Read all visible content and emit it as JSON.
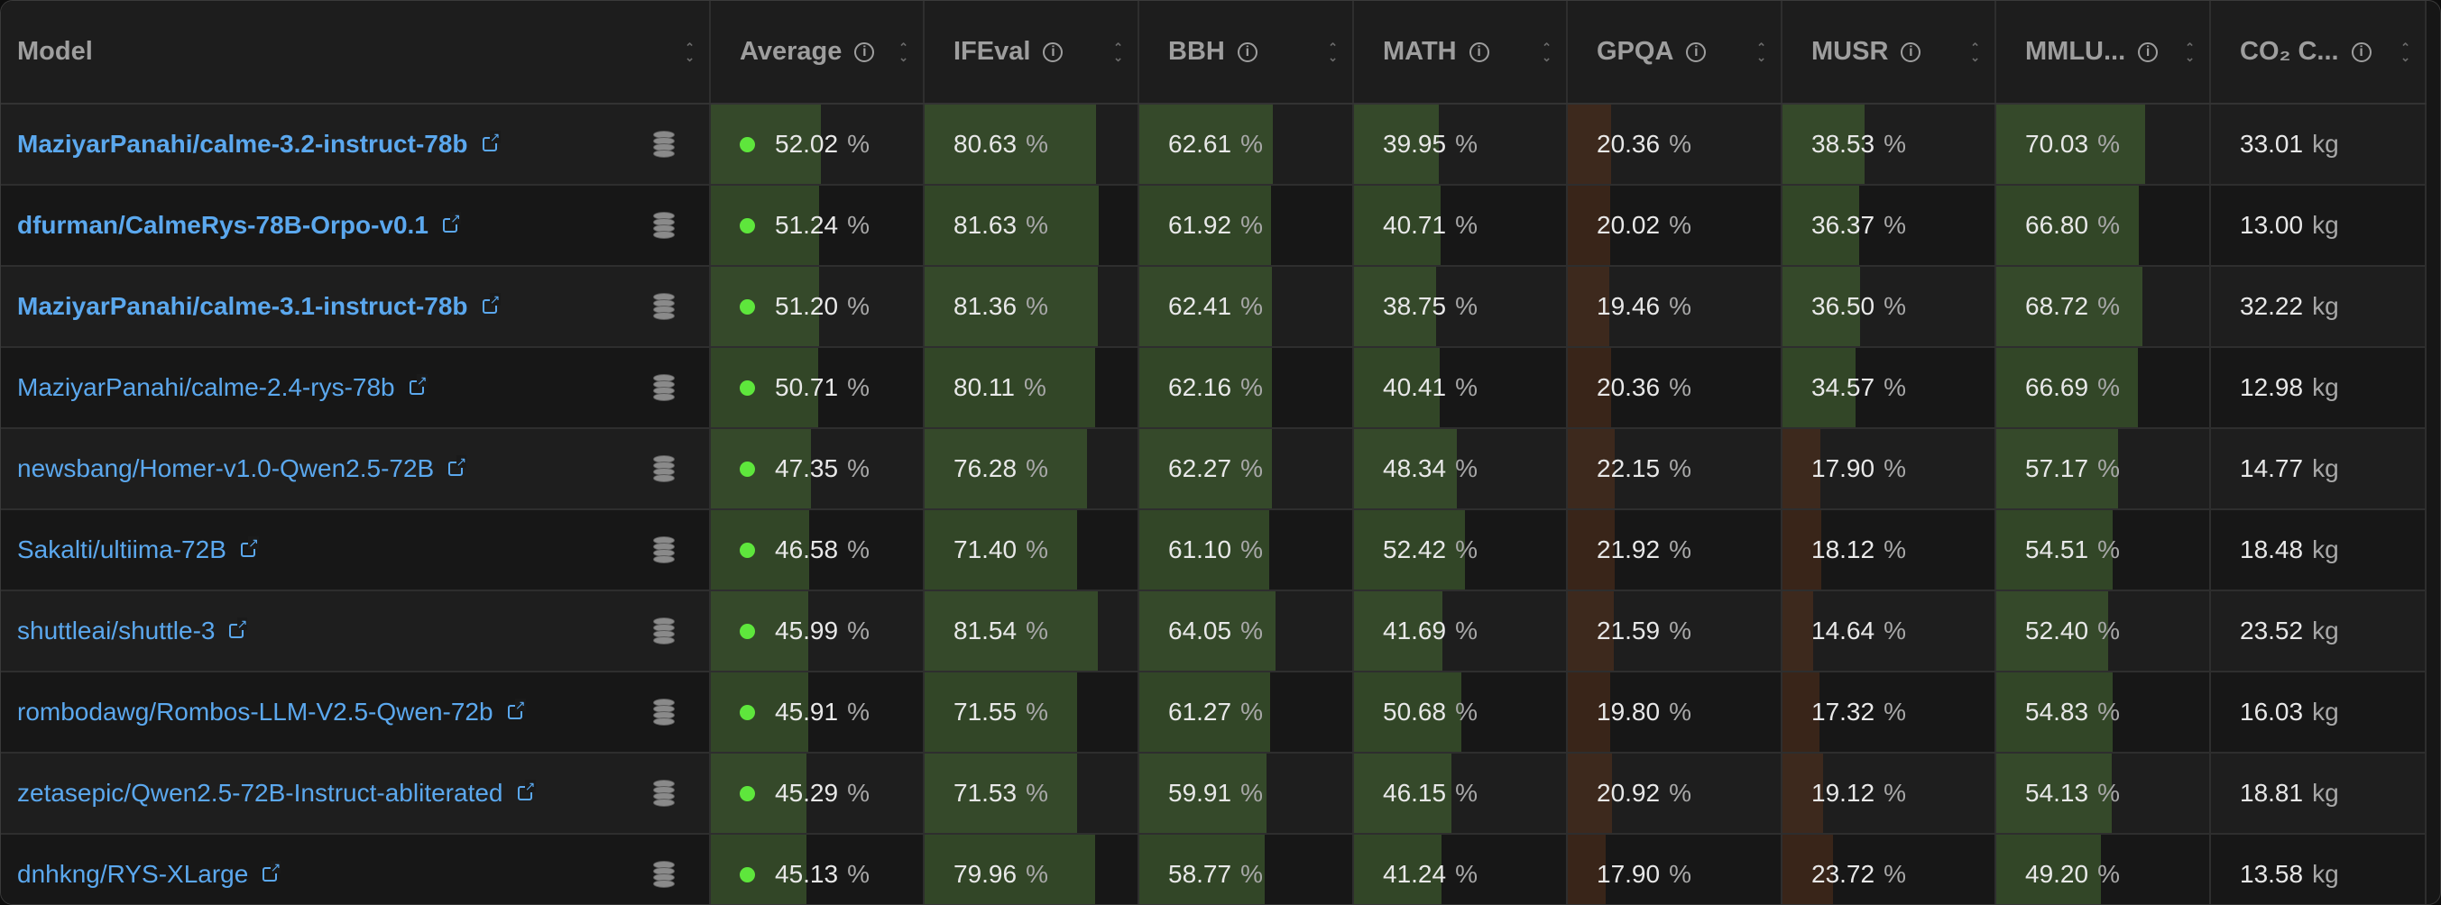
{
  "columns": [
    {
      "key": "model",
      "label": "Model",
      "info": false
    },
    {
      "key": "average",
      "label": "Average",
      "info": true
    },
    {
      "key": "ifeval",
      "label": "IFEval",
      "info": true
    },
    {
      "key": "bbh",
      "label": "BBH",
      "info": true
    },
    {
      "key": "math",
      "label": "MATH",
      "info": true
    },
    {
      "key": "gpqa",
      "label": "GPQA",
      "info": true
    },
    {
      "key": "musr",
      "label": "MUSR",
      "info": true
    },
    {
      "key": "mmlu",
      "label": "MMLU...",
      "info": true
    },
    {
      "key": "co2",
      "label": "CO₂ C...",
      "info": true
    }
  ],
  "percent_unit": "%",
  "co2_unit": "kg",
  "rows": [
    {
      "model": "MaziyarPanahi/calme-3.2-instruct-78b",
      "bold": true,
      "average": "52.02",
      "ifeval": "80.63",
      "bbh": "62.61",
      "math": "39.95",
      "gpqa": "20.36",
      "musr": "38.53",
      "mmlu": "70.03",
      "co2": "33.01"
    },
    {
      "model": "dfurman/CalmeRys-78B-Orpo-v0.1",
      "bold": true,
      "average": "51.24",
      "ifeval": "81.63",
      "bbh": "61.92",
      "math": "40.71",
      "gpqa": "20.02",
      "musr": "36.37",
      "mmlu": "66.80",
      "co2": "13.00"
    },
    {
      "model": "MaziyarPanahi/calme-3.1-instruct-78b",
      "bold": true,
      "average": "51.20",
      "ifeval": "81.36",
      "bbh": "62.41",
      "math": "38.75",
      "gpqa": "19.46",
      "musr": "36.50",
      "mmlu": "68.72",
      "co2": "32.22"
    },
    {
      "model": "MaziyarPanahi/calme-2.4-rys-78b",
      "bold": false,
      "average": "50.71",
      "ifeval": "80.11",
      "bbh": "62.16",
      "math": "40.41",
      "gpqa": "20.36",
      "musr": "34.57",
      "mmlu": "66.69",
      "co2": "12.98"
    },
    {
      "model": "newsbang/Homer-v1.0-Qwen2.5-72B",
      "bold": false,
      "average": "47.35",
      "ifeval": "76.28",
      "bbh": "62.27",
      "math": "48.34",
      "gpqa": "22.15",
      "musr": "17.90",
      "mmlu": "57.17",
      "co2": "14.77"
    },
    {
      "model": "Sakalti/ultiima-72B",
      "bold": false,
      "average": "46.58",
      "ifeval": "71.40",
      "bbh": "61.10",
      "math": "52.42",
      "gpqa": "21.92",
      "musr": "18.12",
      "mmlu": "54.51",
      "co2": "18.48"
    },
    {
      "model": "shuttleai/shuttle-3",
      "bold": false,
      "average": "45.99",
      "ifeval": "81.54",
      "bbh": "64.05",
      "math": "41.69",
      "gpqa": "21.59",
      "musr": "14.64",
      "mmlu": "52.40",
      "co2": "23.52"
    },
    {
      "model": "rombodawg/Rombos-LLM-V2.5-Qwen-72b",
      "bold": false,
      "average": "45.91",
      "ifeval": "71.55",
      "bbh": "61.27",
      "math": "50.68",
      "gpqa": "19.80",
      "musr": "17.32",
      "mmlu": "54.83",
      "co2": "16.03"
    },
    {
      "model": "zetasepic/Qwen2.5-72B-Instruct-abliterated",
      "bold": false,
      "average": "45.29",
      "ifeval": "71.53",
      "bbh": "59.91",
      "math": "46.15",
      "gpqa": "20.92",
      "musr": "19.12",
      "mmlu": "54.13",
      "co2": "18.81"
    },
    {
      "model": "dnhkng/RYS-XLarge",
      "bold": false,
      "average": "45.13",
      "ifeval": "79.96",
      "bbh": "58.77",
      "math": "41.24",
      "gpqa": "17.90",
      "musr": "23.72",
      "mmlu": "49.20",
      "co2": "13.58"
    }
  ]
}
